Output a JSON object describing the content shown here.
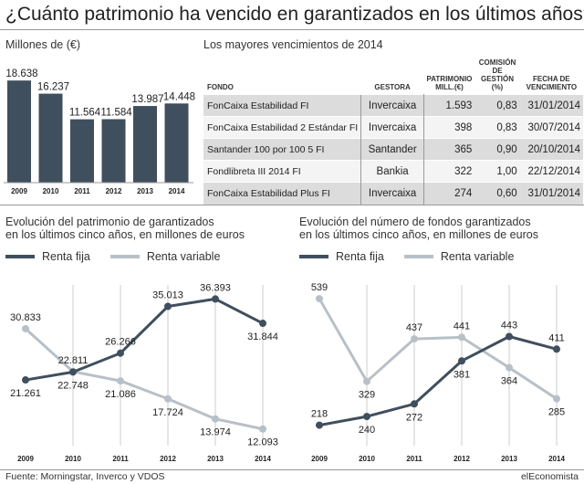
{
  "header": {
    "title": "¿Cuánto patrimonio ha vencido en garantizados en los últimos años?"
  },
  "bar_panel": {
    "subtitle": "Millones de (€)"
  },
  "table_panel": {
    "subtitle": "Los mayores vencimientos de 2014",
    "headers": {
      "fondo": "FONDO",
      "gestora": "GESTORA",
      "patrimonio": [
        "PATRIMONIO",
        "MILL.(€)"
      ],
      "comision": [
        "COMISIÓN",
        "DE",
        "GESTIÓN",
        "(%)"
      ],
      "fecha": [
        "FECHA DE",
        "VENCIMIENTO"
      ]
    },
    "rows": [
      {
        "fondo": "FonCaixa Estabilidad FI",
        "gestora": "Invercaixa",
        "patrimonio": "1.593",
        "comision": "0,83",
        "fecha": "31/01/2014"
      },
      {
        "fondo": "FonCaixa Estabilidad 2 Estándar FI",
        "gestora": "Invercaixa",
        "patrimonio": "398",
        "comision": "0,83",
        "fecha": "30/07/2014"
      },
      {
        "fondo": "Santander 100 por 100 5 FI",
        "gestora": "Santander",
        "patrimonio": "365",
        "comision": "0,90",
        "fecha": "20/10/2014"
      },
      {
        "fondo": "Fondlibreta III 2014 FI",
        "gestora": "Bankia",
        "patrimonio": "322",
        "comision": "1,00",
        "fecha": "22/12/2014"
      },
      {
        "fondo": "FonCaixa Estabilidad Plus FI",
        "gestora": "Invercaixa",
        "patrimonio": "274",
        "comision": "0,60",
        "fecha": "31/01/2014"
      }
    ]
  },
  "line_left_panel": {
    "subtitle": [
      "Evolución del patrimonio de garantizados",
      "en los últimos cinco años, en millones de euros"
    ]
  },
  "line_right_panel": {
    "subtitle": [
      "Evolución del número de fondos garantizados",
      "en los últimos cinco años, en millones de euros"
    ]
  },
  "legend": {
    "renta_fija": "Renta fija",
    "renta_variable": "Renta variable"
  },
  "footer": {
    "source": "Fuente: Morningstar, Inverco y VDOS",
    "brand": "elEconomista"
  },
  "colors": {
    "dark": "#3f4f5e",
    "light": "#b8c0c7",
    "grid": "#cccccc"
  },
  "chart_data": [
    {
      "type": "bar",
      "categories": [
        "2009",
        "2010",
        "2011",
        "2012",
        "2013",
        "2014"
      ],
      "values": [
        18638,
        16237,
        11564,
        11584,
        13987,
        14448
      ],
      "labels": [
        "18.638",
        "16.237",
        "11.564",
        "11.584",
        "13.987",
        "14.448"
      ],
      "ylim": [
        0,
        20000
      ]
    },
    {
      "type": "line",
      "categories": [
        "2009",
        "2010",
        "2011",
        "2012",
        "2013",
        "2014"
      ],
      "series": [
        {
          "name": "Renta fija",
          "values": [
            21261,
            22748,
            26266,
            35013,
            36393,
            31844
          ],
          "labels": [
            "21.261",
            "22.748",
            "26.266",
            "35.013",
            "36.393",
            "31.844"
          ]
        },
        {
          "name": "Renta variable",
          "values": [
            30833,
            22811,
            21086,
            17724,
            13974,
            12093
          ],
          "labels": [
            "30.833",
            "22.811",
            "21.086",
            "17.724",
            "13.974",
            "12.093"
          ]
        }
      ],
      "ylim": [
        10000,
        38000
      ],
      "grid": "vertical"
    },
    {
      "type": "line",
      "categories": [
        "2009",
        "2010",
        "2011",
        "2012",
        "2013",
        "2014"
      ],
      "series": [
        {
          "name": "Renta fija",
          "values": [
            218,
            240,
            272,
            381,
            443,
            411
          ],
          "labels": [
            "218",
            "240",
            "272",
            "381",
            "443",
            "411"
          ]
        },
        {
          "name": "Renta variable",
          "values": [
            539,
            329,
            437,
            441,
            364,
            285
          ],
          "labels": [
            "539",
            "329",
            "437",
            "441",
            "364",
            "285"
          ]
        }
      ],
      "ylim": [
        180,
        560
      ],
      "grid": "vertical"
    }
  ]
}
